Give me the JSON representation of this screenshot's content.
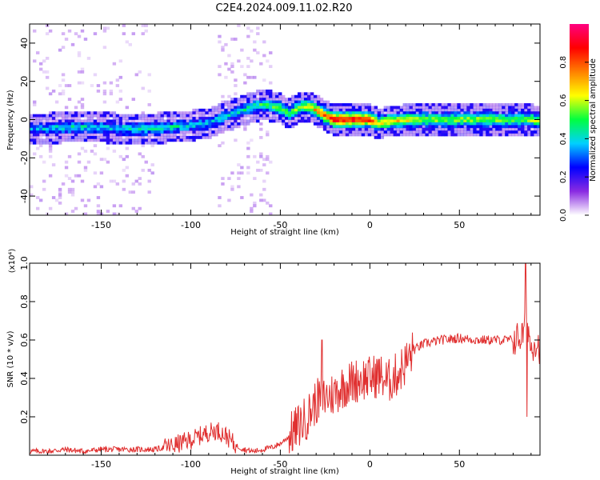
{
  "title": "C2E4.2024.009.11.02.R20",
  "colors": {
    "snr_line": "#e03030",
    "colormap": [
      "#ffffff",
      "#8a2be2",
      "#0000ff",
      "#00d0ff",
      "#00ff40",
      "#ffff00",
      "#ff8000",
      "#ff0000",
      "#ff0080"
    ]
  },
  "chart_data": [
    {
      "type": "heatmap",
      "xlabel": "Height of straight line (km)",
      "ylabel": "Frequency (Hz)",
      "xlim": [
        -190,
        95
      ],
      "ylim": [
        -50,
        50
      ],
      "xticks": [
        -150,
        -100,
        -50,
        0,
        50
      ],
      "xtick_labels": [
        "-150",
        "-100",
        "-50",
        "0",
        "50"
      ],
      "yticks": [
        -40,
        -20,
        0,
        20,
        40
      ],
      "ytick_labels": [
        "-40",
        "-20",
        "0",
        "20",
        "40"
      ],
      "colorbar": {
        "label": "Normalized spectral amplitude",
        "range": [
          0,
          1
        ],
        "ticks": [
          0.0,
          0.2,
          0.4,
          0.6,
          0.8
        ],
        "tick_labels": [
          "0.0",
          "0.2",
          "0.4",
          "0.6",
          "0.8"
        ]
      },
      "ridge": {
        "x": [
          -190,
          -170,
          -150,
          -130,
          -110,
          -100,
          -90,
          -80,
          -70,
          -60,
          -50,
          -45,
          -40,
          -35,
          -30,
          -25,
          -20,
          -15,
          -10,
          -5,
          0,
          5,
          10,
          20,
          30,
          40,
          50,
          60,
          70,
          80,
          90,
          95
        ],
        "frequency": [
          -5,
          -4,
          -4,
          -5,
          -4,
          -3,
          -2,
          2,
          5,
          8,
          6,
          3,
          6,
          7,
          5,
          2,
          0,
          0,
          0,
          0,
          0,
          -2,
          -1,
          0,
          0,
          0,
          0,
          0,
          0,
          0,
          0,
          -1
        ],
        "amplitude": [
          0.35,
          0.45,
          0.4,
          0.45,
          0.45,
          0.4,
          0.4,
          0.4,
          0.45,
          0.5,
          0.55,
          0.55,
          0.6,
          0.65,
          0.75,
          0.85,
          0.95,
          0.95,
          0.95,
          0.95,
          0.9,
          0.65,
          0.7,
          0.7,
          0.6,
          0.6,
          0.6,
          0.6,
          0.6,
          0.55,
          0.6,
          0.6
        ]
      }
    },
    {
      "type": "line",
      "xlabel": "Height of straight line (km)",
      "ylabel": "SNR (10 * v/v)",
      "y_multiplier": "(x10⁴)",
      "xlim": [
        -190,
        95
      ],
      "ylim": [
        0,
        1.0
      ],
      "xticks": [
        -150,
        -100,
        -50,
        0,
        50
      ],
      "xtick_labels": [
        "-150",
        "-100",
        "-50",
        "0",
        "50"
      ],
      "yticks": [
        0.2,
        0.4,
        0.6,
        0.8,
        1.0
      ],
      "ytick_labels": [
        "0.2",
        "0.4",
        "0.6",
        "0.8",
        "1.0"
      ],
      "series": [
        {
          "x": [
            -190,
            -180,
            -170,
            -160,
            -150,
            -140,
            -130,
            -120,
            -110,
            -100,
            -95,
            -90,
            -85,
            -80,
            -75,
            -70,
            -65,
            -60,
            -55,
            -50,
            -45,
            -40,
            -35,
            -30,
            -25,
            -20,
            -15,
            -10,
            -5,
            0,
            5,
            10,
            15,
            20,
            25,
            30,
            40,
            50,
            60,
            70,
            80,
            85,
            88,
            90,
            92,
            95
          ],
          "y": [
            0.02,
            0.02,
            0.03,
            0.02,
            0.03,
            0.03,
            0.03,
            0.03,
            0.05,
            0.08,
            0.1,
            0.12,
            0.13,
            0.1,
            0.05,
            0.03,
            0.02,
            0.03,
            0.04,
            0.06,
            0.1,
            0.15,
            0.2,
            0.28,
            0.3,
            0.32,
            0.36,
            0.38,
            0.4,
            0.4,
            0.42,
            0.38,
            0.42,
            0.48,
            0.55,
            0.58,
            0.6,
            0.61,
            0.6,
            0.6,
            0.6,
            0.62,
            0.7,
            0.55,
            0.6,
            0.56
          ]
        }
      ]
    }
  ]
}
